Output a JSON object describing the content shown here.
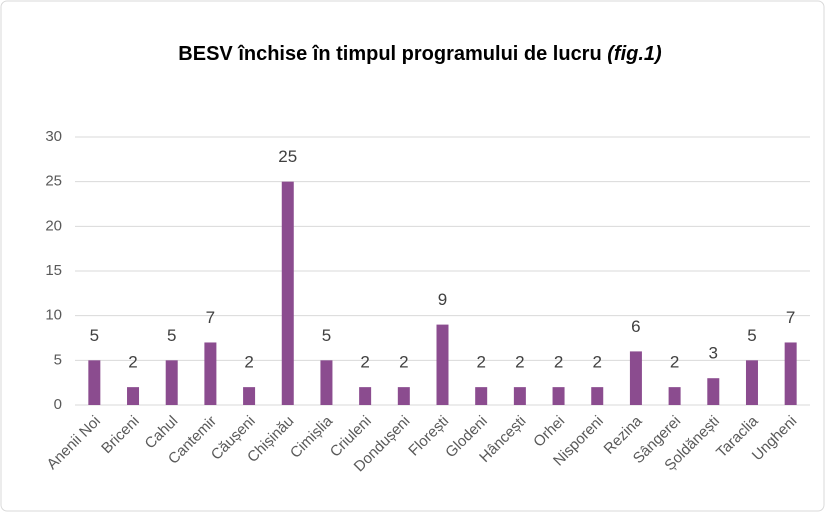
{
  "chart_data": {
    "type": "bar",
    "title": "BESV închise în timpul programului de lucru",
    "title_suffix": "(fig.1)",
    "categories": [
      "Anenii Noi",
      "Briceni",
      "Cahul",
      "Cantemir",
      "Căușeni",
      "Chișinău",
      "Cimișlia",
      "Criuleni",
      "Dondușeni",
      "Florești",
      "Glodeni",
      "Hâncești",
      "Orhei",
      "Nisporeni",
      "Rezina",
      "Sângerei",
      "Șoldănești",
      "Taraclia",
      "Ungheni"
    ],
    "values": [
      5,
      2,
      5,
      7,
      2,
      25,
      5,
      2,
      2,
      9,
      2,
      2,
      2,
      2,
      6,
      2,
      3,
      5,
      7
    ],
    "color": "#8b4c8f",
    "ylim": [
      0,
      30
    ],
    "yticks": [
      0,
      5,
      10,
      15,
      20,
      25,
      30
    ],
    "grid": true
  }
}
